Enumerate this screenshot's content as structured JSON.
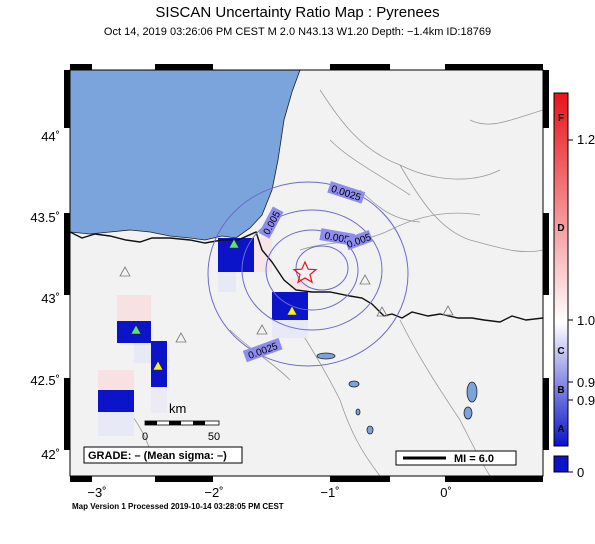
{
  "title": "SISCAN Uncertainty Ratio Map : Pyrenees",
  "subtitle": "Oct 14, 2019 03:26:06 PM CEST   M 2.0   N43.13 W1.20   Depth: −1.4km   ID:18769",
  "footer": "Map Version 1 Processed 2019-10-14 03:28:05 PM CEST",
  "axes": {
    "lat_labels": [
      "44˚",
      "43.5˚",
      "43˚",
      "42.5˚",
      "42˚"
    ],
    "lon_labels": [
      "−3˚",
      "−2˚",
      "−1˚",
      "0˚"
    ]
  },
  "contour_labels": [
    "0.0025",
    "0.005",
    "0.005",
    "0.005",
    "0.0025"
  ],
  "scale_bar": {
    "unit": "km",
    "ticks": [
      "0",
      "50"
    ]
  },
  "grade_box": "GRADE: – (Mean sigma: –)",
  "mi_legend": "MI = 6.0",
  "colorbar": {
    "letters": [
      "F",
      "D",
      "C",
      "B",
      "A"
    ],
    "values": [
      "1.2",
      "1.0",
      "0.9",
      "0.9",
      "0"
    ]
  },
  "colors": {
    "sea": "#7ba3dc",
    "land": "#f2f2f2",
    "high": "#e8141a",
    "low": "#0b14c8",
    "contour": "#6b6bcf",
    "epicenter": "#e8141a"
  }
}
